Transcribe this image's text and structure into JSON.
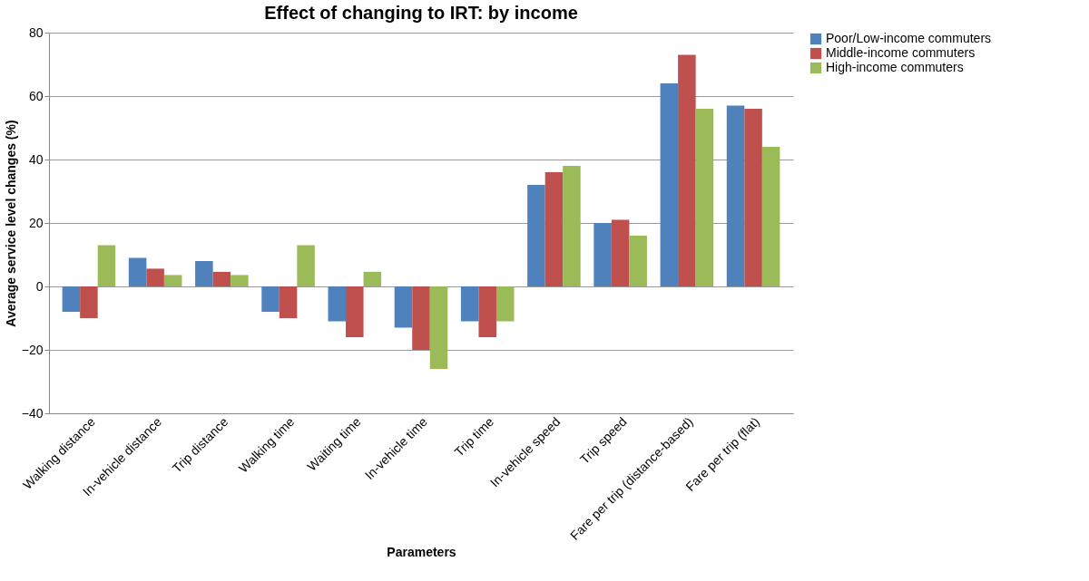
{
  "chart_data": {
    "type": "bar",
    "title": "Effect of changing to IRT: by income",
    "xlabel": "Parameters",
    "ylabel": "Average service level changes (%)",
    "categories": [
      "Walking distance",
      "In-vehicle distance",
      "Trip distance",
      "Walking time",
      "Waiting time",
      "In-vehicle time",
      "Trip time",
      "In-vehicle speed",
      "Trip speed",
      "Fare per trip (distance-based)",
      "Fare per trip (flat)"
    ],
    "series": [
      {
        "name": "Poor/Low-income commuters",
        "color": "#4f81bd",
        "values": [
          -8,
          9,
          8,
          -8,
          -11,
          -13,
          -11,
          32,
          20,
          64,
          57
        ]
      },
      {
        "name": "Middle-income commuters",
        "color": "#c0504d",
        "values": [
          -10,
          5.6,
          4.6,
          -10,
          -16,
          -20,
          -16,
          36,
          21,
          73,
          56
        ]
      },
      {
        "name": "High-income commuters",
        "color": "#9bbb59",
        "values": [
          13,
          3.6,
          3.6,
          13,
          4.6,
          -26,
          -11,
          38,
          16,
          56,
          44
        ]
      }
    ],
    "ylim": [
      -40,
      80
    ],
    "yticks": [
      -40,
      -20,
      0,
      20,
      40,
      60,
      80
    ],
    "grid": "y",
    "legend": "right"
  }
}
